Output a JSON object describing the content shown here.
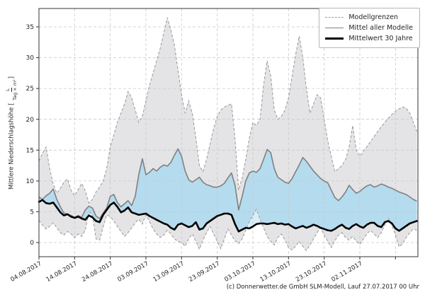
{
  "figure": {
    "footer": "(c) Donnerwetter.de GmbH SLM-Modell, Lauf 27.07.2017 00 Uhr"
  },
  "legend": {
    "items": [
      {
        "label": "Modellgrenzen",
        "style": "dashed-gray"
      },
      {
        "label": "Mittel aller Modelle",
        "style": "solid-gray"
      },
      {
        "label": "Mittelwert 30 Jahre",
        "style": "solid-black-thick"
      }
    ]
  },
  "y_axis": {
    "label": "Mittlere Niederschlagshöhe",
    "unit_numerator": "L",
    "unit_denominator": "Tag × m²",
    "ticks": [
      0,
      5,
      10,
      15,
      20,
      25,
      30,
      35
    ]
  },
  "chart_data": {
    "type": "line",
    "title": "",
    "x_start_date": "04.08.2017",
    "x_tick_interval_days": 10,
    "x_ticks": [
      {
        "day": 0,
        "label": "04.08.2017"
      },
      {
        "day": 10,
        "label": "14.08.2017"
      },
      {
        "day": 20,
        "label": "24.08.2017"
      },
      {
        "day": 30,
        "label": "03.09.2017"
      },
      {
        "day": 40,
        "label": "13.09.2017"
      },
      {
        "day": 50,
        "label": "23.09.2017"
      },
      {
        "day": 60,
        "label": "03.10.2017"
      },
      {
        "day": 70,
        "label": "13.10.2017"
      },
      {
        "day": 80,
        "label": "23.10.2017"
      },
      {
        "day": 90,
        "label": "02.11.2017"
      },
      {
        "day": 100,
        "label": ""
      }
    ],
    "ylim": [
      -2.3,
      38.0
    ],
    "grid": true,
    "legend_position": "top-right",
    "series": [
      {
        "name": "Obere Modellgrenze",
        "role": "upper_bound",
        "values": [
          13.2,
          14.5,
          15.5,
          12.0,
          9.5,
          8.0,
          8.8,
          9.8,
          10.3,
          8.5,
          7.6,
          8.6,
          9.6,
          8.4,
          6.4,
          7.0,
          8.2,
          9.0,
          10.0,
          12.0,
          15.6,
          17.5,
          19.5,
          21.0,
          22.5,
          24.5,
          23.5,
          21.5,
          19.5,
          20.5,
          23.0,
          25.5,
          27.5,
          29.5,
          31.5,
          34.0,
          36.5,
          34.5,
          32.0,
          28.0,
          24.0,
          21.0,
          23.0,
          21.0,
          17.0,
          12.5,
          11.5,
          13.5,
          16.0,
          18.5,
          20.5,
          21.5,
          22.0,
          22.3,
          22.5,
          16.8,
          8.5,
          10.5,
          13.5,
          17.0,
          19.5,
          19.0,
          20.0,
          25.5,
          29.5,
          27.0,
          21.5,
          20.0,
          20.5,
          21.5,
          23.5,
          27.0,
          30.5,
          33.5,
          30.0,
          25.0,
          21.0,
          22.5,
          24.0,
          23.5,
          20.0,
          16.5,
          14.0,
          11.5,
          12.0,
          12.5,
          13.5,
          15.5,
          19.0,
          15.0,
          14.0,
          14.8,
          15.6,
          16.4,
          17.2,
          18.0,
          18.8,
          19.5,
          20.2,
          20.8,
          21.3,
          21.7,
          22.0,
          21.8,
          21.0,
          19.5,
          18.0
        ]
      },
      {
        "name": "Untere Modellgrenze",
        "role": "lower_bound",
        "values": [
          3.6,
          2.8,
          2.2,
          2.6,
          3.2,
          2.4,
          1.6,
          1.2,
          1.8,
          1.4,
          0.8,
          1.4,
          1.0,
          2.0,
          5.0,
          4.6,
          0.6,
          0.4,
          2.5,
          4.5,
          4.2,
          3.5,
          2.6,
          1.8,
          1.0,
          1.6,
          2.4,
          3.2,
          3.8,
          3.0,
          4.5,
          3.4,
          2.2,
          1.4,
          0.8,
          1.2,
          2.0,
          1.4,
          0.6,
          0.2,
          0.0,
          -0.6,
          0.6,
          1.4,
          0.2,
          -1.1,
          0.4,
          1.6,
          2.6,
          1.4,
          0.2,
          -1.0,
          0.6,
          2.2,
          1.2,
          0.3,
          -0.2,
          0.6,
          2.0,
          3.4,
          4.4,
          5.4,
          3.8,
          2.4,
          1.0,
          0.2,
          -0.4,
          0.8,
          1.4,
          0.4,
          -0.8,
          -1.2,
          -0.6,
          0.2,
          -0.6,
          -1.3,
          -0.4,
          0.6,
          1.6,
          2.4,
          1.2,
          0.2,
          -0.8,
          0.3,
          1.2,
          1.6,
          0.8,
          0.4,
          1.0,
          0.2,
          -0.3,
          0.6,
          1.4,
          2.0,
          1.4,
          0.8,
          1.6,
          2.8,
          4.0,
          2.8,
          1.2,
          -0.7,
          -0.2,
          0.8,
          1.6,
          2.2,
          2.0
        ]
      },
      {
        "name": "Mittel aller Modelle",
        "role": "model_mean",
        "values": [
          7.4,
          7.0,
          7.6,
          8.0,
          8.7,
          7.0,
          5.8,
          4.8,
          4.6,
          4.4,
          4.1,
          4.4,
          4.1,
          5.3,
          5.9,
          5.6,
          4.3,
          3.9,
          4.8,
          5.6,
          7.5,
          7.8,
          6.5,
          5.8,
          6.3,
          6.8,
          6.0,
          7.5,
          11.0,
          13.6,
          11.0,
          11.4,
          12.0,
          11.6,
          12.2,
          12.6,
          12.4,
          13.0,
          14.2,
          15.2,
          14.0,
          11.6,
          10.2,
          9.8,
          10.2,
          10.6,
          9.8,
          9.4,
          9.2,
          9.0,
          9.0,
          9.2,
          9.6,
          10.5,
          11.3,
          9.3,
          5.3,
          7.5,
          10.0,
          11.3,
          11.6,
          11.4,
          12.0,
          13.5,
          15.1,
          14.6,
          12.0,
          10.6,
          10.2,
          9.8,
          9.6,
          10.4,
          11.5,
          12.6,
          13.8,
          13.2,
          12.4,
          11.6,
          11.0,
          10.4,
          10.0,
          9.7,
          8.5,
          7.3,
          6.8,
          7.4,
          8.2,
          9.3,
          8.6,
          8.0,
          8.3,
          8.8,
          9.2,
          9.4,
          9.0,
          9.2,
          9.5,
          9.3,
          9.0,
          8.8,
          8.5,
          8.2,
          8.0,
          7.8,
          7.4,
          7.0,
          6.7
        ]
      },
      {
        "name": "Mittelwert 30 Jahre",
        "role": "mean_30y",
        "values": [
          6.6,
          6.9,
          6.4,
          6.3,
          6.5,
          5.7,
          4.9,
          4.4,
          4.6,
          4.2,
          4.0,
          4.2,
          3.9,
          3.7,
          4.4,
          4.1,
          3.5,
          3.3,
          4.5,
          5.3,
          6.1,
          6.5,
          5.8,
          4.9,
          5.2,
          5.7,
          4.9,
          4.7,
          4.5,
          4.6,
          4.7,
          4.3,
          4.0,
          3.7,
          3.4,
          3.1,
          2.9,
          2.4,
          2.1,
          2.9,
          3.1,
          2.8,
          2.5,
          2.7,
          3.3,
          2.1,
          2.3,
          3.1,
          3.5,
          3.9,
          4.3,
          4.5,
          4.7,
          4.7,
          4.5,
          3.0,
          1.8,
          2.1,
          2.4,
          2.3,
          2.6,
          3.0,
          3.1,
          3.1,
          3.0,
          3.1,
          3.2,
          3.0,
          3.1,
          2.9,
          3.0,
          2.6,
          2.3,
          2.5,
          2.7,
          2.4,
          2.6,
          2.9,
          2.7,
          2.4,
          2.2,
          2.0,
          1.9,
          2.2,
          2.6,
          2.9,
          2.4,
          2.2,
          2.7,
          3.0,
          2.6,
          2.4,
          2.9,
          3.2,
          3.2,
          2.7,
          2.5,
          3.3,
          3.5,
          3.1,
          2.3,
          1.9,
          2.3,
          2.7,
          3.1,
          3.3,
          3.5
        ]
      }
    ],
    "colors": {
      "band_fill": "#e4e4e6",
      "band_edge": "#999999",
      "blue_fill": "#b5dbee",
      "pale_blue_fill": "#daeef8",
      "model_mean_line": "#808080",
      "mean_30y_line": "#000000",
      "grid": "#c9c9c9",
      "spine": "#333333",
      "tick_text": "#262626"
    }
  }
}
